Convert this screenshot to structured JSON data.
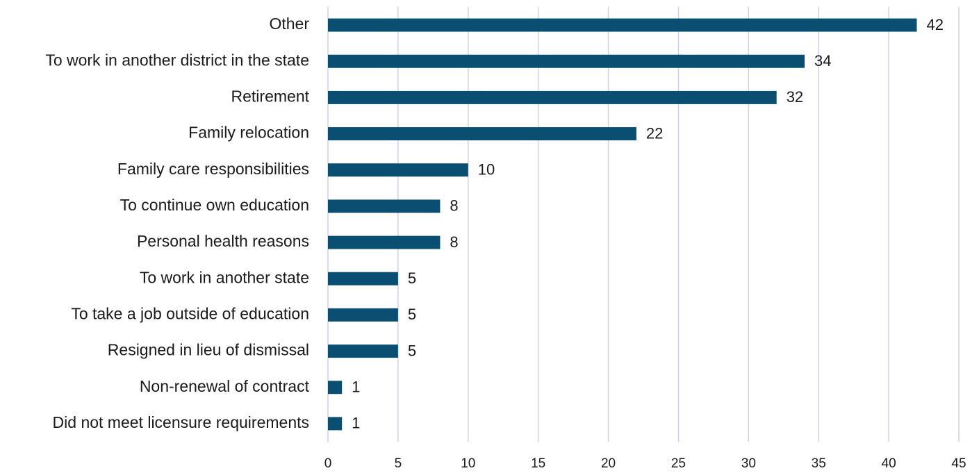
{
  "chart_data": {
    "type": "bar",
    "orientation": "horizontal",
    "categories": [
      "Other",
      "To work in another district in the state",
      "Retirement",
      "Family relocation",
      "Family care responsibilities",
      "To continue own education",
      "Personal health reasons",
      "To work in another state",
      "To take a job outside of education",
      "Resigned in lieu of dismissal",
      "Non-renewal of contract",
      "Did not meet licensure requirements"
    ],
    "values": [
      42,
      34,
      32,
      22,
      10,
      8,
      8,
      5,
      5,
      5,
      1,
      1
    ],
    "color": "#0a4f72",
    "xlim": [
      0,
      45
    ],
    "xticks": [
      0,
      5,
      10,
      15,
      20,
      25,
      30,
      35,
      40,
      45
    ],
    "grid": true
  }
}
